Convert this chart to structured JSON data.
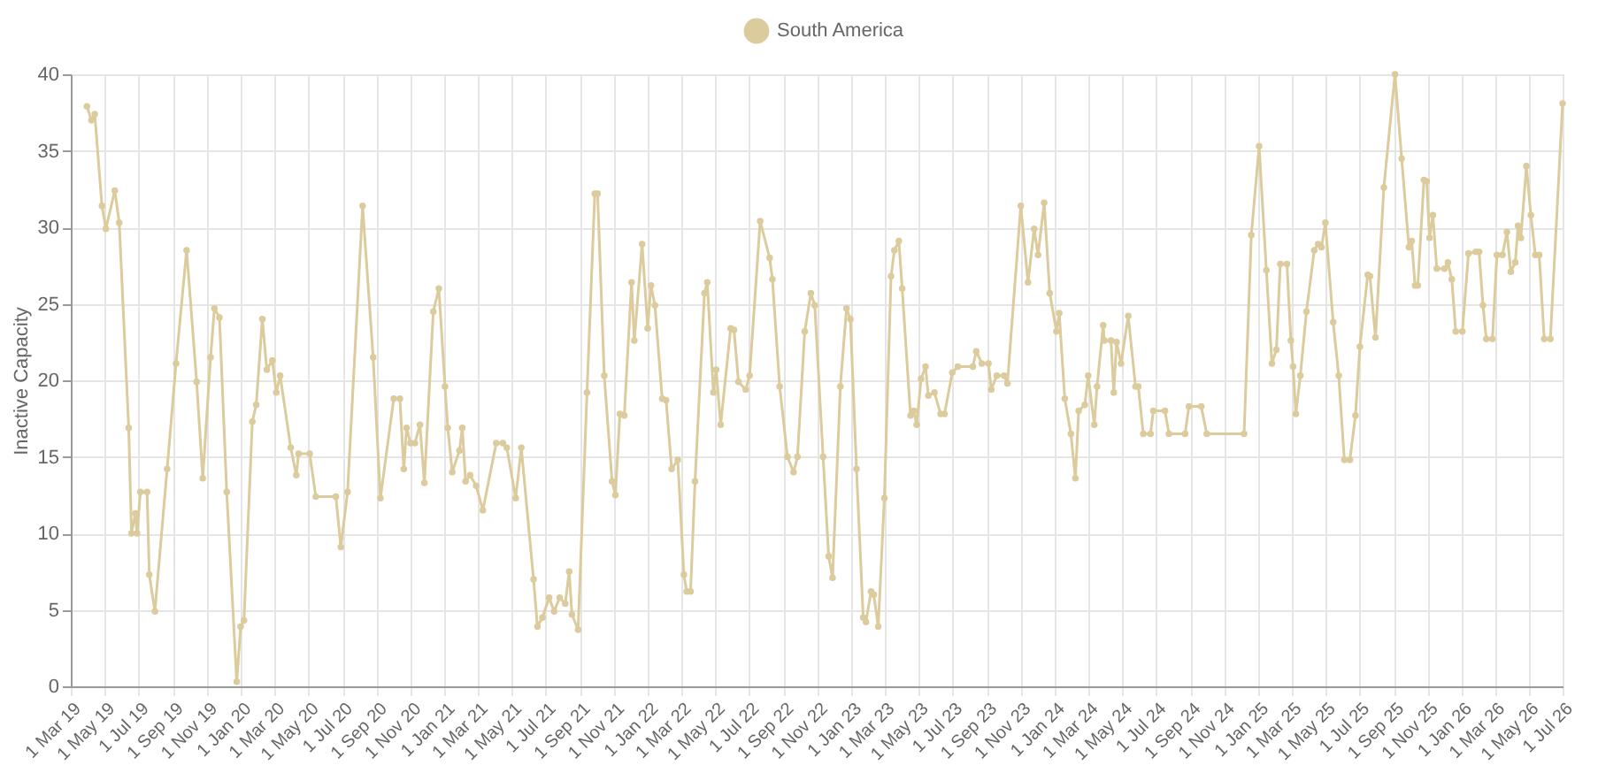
{
  "chart_data": {
    "type": "line",
    "ylabel": "Inactive Capacity",
    "x": [
      "2019-03-30",
      "2019-04-07",
      "2019-04-13",
      "2019-04-26",
      "2019-05-03",
      "2019-05-19",
      "2019-05-27",
      "2019-06-13",
      "2019-06-18",
      "2019-06-25",
      "2019-06-28",
      "2019-07-04",
      "2019-07-16",
      "2019-07-20",
      "2019-07-30",
      "2019-08-21",
      "2019-09-06",
      "2019-09-25",
      "2019-10-13",
      "2019-10-24",
      "2019-11-07",
      "2019-11-14",
      "2019-11-23",
      "2019-12-06",
      "2019-12-24",
      "2019-12-31",
      "2020-01-06",
      "2020-01-21",
      "2020-01-28",
      "2020-02-08",
      "2020-02-16",
      "2020-02-26",
      "2020-03-04",
      "2020-03-11",
      "2020-03-30",
      "2020-04-09",
      "2020-04-13",
      "2020-05-03",
      "2020-05-14",
      "2020-06-19",
      "2020-06-28",
      "2020-07-10",
      "2020-08-06",
      "2020-08-25",
      "2020-09-07",
      "2020-10-01",
      "2020-10-12",
      "2020-10-19",
      "2020-10-24",
      "2020-10-31",
      "2020-11-08",
      "2020-11-17",
      "2020-11-25",
      "2020-12-11",
      "2020-12-21",
      "2021-01-01",
      "2021-01-06",
      "2021-01-14",
      "2021-01-27",
      "2021-02-01",
      "2021-02-07",
      "2021-02-15",
      "2021-02-26",
      "2021-03-10",
      "2021-04-03",
      "2021-04-15",
      "2021-04-22",
      "2021-05-08",
      "2021-05-18",
      "2021-06-09",
      "2021-06-16",
      "2021-06-25",
      "2021-07-07",
      "2021-07-16",
      "2021-07-26",
      "2021-08-05",
      "2021-08-12",
      "2021-08-17",
      "2021-08-28",
      "2021-09-13",
      "2021-09-27",
      "2021-10-02",
      "2021-10-14",
      "2021-10-28",
      "2021-11-03",
      "2021-11-11",
      "2021-11-19",
      "2021-12-02",
      "2021-12-07",
      "2021-12-21",
      "2021-12-31",
      "2022-01-06",
      "2022-01-13",
      "2022-01-26",
      "2022-02-02",
      "2022-02-12",
      "2022-02-23",
      "2022-03-06",
      "2022-03-11",
      "2022-03-18",
      "2022-03-26",
      "2022-04-12",
      "2022-04-17",
      "2022-04-28",
      "2022-05-03",
      "2022-05-11",
      "2022-05-29",
      "2022-06-04",
      "2022-06-12",
      "2022-06-25",
      "2022-07-02",
      "2022-07-21",
      "2022-08-07",
      "2022-08-12",
      "2022-08-25",
      "2022-09-08",
      "2022-09-19",
      "2022-09-26",
      "2022-10-09",
      "2022-10-20",
      "2022-10-27",
      "2022-11-11",
      "2022-11-21",
      "2022-11-28",
      "2022-12-12",
      "2022-12-23",
      "2022-12-30",
      "2023-01-10",
      "2023-01-22",
      "2023-01-27",
      "2023-02-05",
      "2023-02-10",
      "2023-02-18",
      "2023-03-01",
      "2023-03-13",
      "2023-03-19",
      "2023-03-27",
      "2023-04-02",
      "2023-04-17",
      "2023-04-23",
      "2023-04-28",
      "2023-05-06",
      "2023-05-14",
      "2023-05-19",
      "2023-05-30",
      "2023-06-10",
      "2023-06-17",
      "2023-07-01",
      "2023-07-11",
      "2023-08-07",
      "2023-08-13",
      "2023-08-23",
      "2023-09-04",
      "2023-09-09",
      "2023-09-19",
      "2023-10-02",
      "2023-10-08",
      "2023-11-01",
      "2023-11-14",
      "2023-11-25",
      "2023-12-02",
      "2023-12-13",
      "2023-12-23",
      "2024-01-04",
      "2024-01-09",
      "2024-01-19",
      "2024-01-30",
      "2024-02-07",
      "2024-02-13",
      "2024-02-24",
      "2024-03-01",
      "2024-03-12",
      "2024-03-17",
      "2024-03-28",
      "2024-03-30",
      "2024-04-11",
      "2024-04-16",
      "2024-04-21",
      "2024-04-29",
      "2024-05-12",
      "2024-05-25",
      "2024-05-30",
      "2024-06-08",
      "2024-06-21",
      "2024-06-26",
      "2024-07-17",
      "2024-07-24",
      "2024-08-22",
      "2024-08-29",
      "2024-09-20",
      "2024-09-30",
      "2024-12-06",
      "2024-12-19",
      "2025-01-02",
      "2025-01-15",
      "2025-01-25",
      "2025-02-02",
      "2025-02-09",
      "2025-02-21",
      "2025-02-28",
      "2025-03-04",
      "2025-03-09",
      "2025-03-17",
      "2025-03-28",
      "2025-04-11",
      "2025-04-18",
      "2025-04-24",
      "2025-05-01",
      "2025-05-15",
      "2025-05-25",
      "2025-06-04",
      "2025-06-14",
      "2025-06-24",
      "2025-07-02",
      "2025-07-16",
      "2025-07-20",
      "2025-07-30",
      "2025-08-14",
      "2025-09-03",
      "2025-09-15",
      "2025-09-28",
      "2025-10-03",
      "2025-10-09",
      "2025-10-14",
      "2025-10-25",
      "2025-10-30",
      "2025-11-04",
      "2025-11-10",
      "2025-11-17",
      "2025-12-01",
      "2025-12-07",
      "2025-12-14",
      "2025-12-21",
      "2026-01-02",
      "2026-01-13",
      "2026-01-26",
      "2026-02-01",
      "2026-02-08",
      "2026-02-14",
      "2026-02-25",
      "2026-03-05",
      "2026-03-15",
      "2026-03-23",
      "2026-03-30",
      "2026-04-07",
      "2026-04-12",
      "2026-04-17",
      "2026-04-27",
      "2026-05-05",
      "2026-05-13",
      "2026-05-20",
      "2026-05-29",
      "2026-06-09",
      "2026-07-01"
    ],
    "series": [
      {
        "name": "South America",
        "color": "#dccb9c",
        "values": [
          37.9,
          37.0,
          37.4,
          31.4,
          29.9,
          32.4,
          30.3,
          16.9,
          10.0,
          11.3,
          10.0,
          12.7,
          12.7,
          7.3,
          4.9,
          14.2,
          21.1,
          28.5,
          19.9,
          13.6,
          21.5,
          24.7,
          24.1,
          12.7,
          0.3,
          3.9,
          4.3,
          17.3,
          18.4,
          24.0,
          20.7,
          21.3,
          19.2,
          20.3,
          15.6,
          13.8,
          15.2,
          15.2,
          12.4,
          12.4,
          9.1,
          12.7,
          31.4,
          21.5,
          12.3,
          18.8,
          18.8,
          14.2,
          16.9,
          15.9,
          15.9,
          17.1,
          13.3,
          24.5,
          26.0,
          19.6,
          16.9,
          14.0,
          15.4,
          16.9,
          13.4,
          13.8,
          13.1,
          11.5,
          15.9,
          15.9,
          15.6,
          12.3,
          15.6,
          7.0,
          3.9,
          4.5,
          5.8,
          4.9,
          5.8,
          5.4,
          7.5,
          4.7,
          3.7,
          19.2,
          32.2,
          32.2,
          20.3,
          13.4,
          12.5,
          17.8,
          17.7,
          26.4,
          22.6,
          28.9,
          23.4,
          26.2,
          24.9,
          18.8,
          18.7,
          14.2,
          14.8,
          7.3,
          6.2,
          6.2,
          13.4,
          25.7,
          26.4,
          19.2,
          20.7,
          17.1,
          23.4,
          23.3,
          19.9,
          19.4,
          20.3,
          30.4,
          28.0,
          26.6,
          19.6,
          15.0,
          14.0,
          15.0,
          23.2,
          25.7,
          24.9,
          15.0,
          8.5,
          7.1,
          19.6,
          24.7,
          24.0,
          14.2,
          4.5,
          4.2,
          6.2,
          6.0,
          3.9,
          12.3,
          26.8,
          28.5,
          29.1,
          26.0,
          17.7,
          18.0,
          17.1,
          20.1,
          20.9,
          19.0,
          19.2,
          17.8,
          17.8,
          20.5,
          20.9,
          20.9,
          21.9,
          21.1,
          21.1,
          19.4,
          20.3,
          20.3,
          19.8,
          31.4,
          26.4,
          29.9,
          28.2,
          31.6,
          25.7,
          23.2,
          24.4,
          18.8,
          16.5,
          13.6,
          18.0,
          18.4,
          20.3,
          17.1,
          19.6,
          23.6,
          22.6,
          22.6,
          19.2,
          22.5,
          21.1,
          24.2,
          19.6,
          19.6,
          16.5,
          16.5,
          18.0,
          18.0,
          16.5,
          16.5,
          18.3,
          18.3,
          16.5,
          16.5,
          29.5,
          35.3,
          27.2,
          21.1,
          22.0,
          27.6,
          27.6,
          22.6,
          20.9,
          17.8,
          20.3,
          24.5,
          28.5,
          28.9,
          28.7,
          30.3,
          23.8,
          20.3,
          14.8,
          14.8,
          17.7,
          22.2,
          26.9,
          26.8,
          22.8,
          32.6,
          40.0,
          34.5,
          28.7,
          29.1,
          26.2,
          26.2,
          33.1,
          33.0,
          29.3,
          30.8,
          27.3,
          27.3,
          27.7,
          26.6,
          23.2,
          23.2,
          28.3,
          28.4,
          28.4,
          24.9,
          22.7,
          22.7,
          28.2,
          28.2,
          29.7,
          27.1,
          27.7,
          30.1,
          29.3,
          34.0,
          30.8,
          28.2,
          28.2,
          22.7,
          22.7,
          38.1
        ]
      }
    ],
    "xlim": [
      "2019-03-01",
      "2026-07-01"
    ],
    "xticks": [
      {
        "value": "2019-03-01",
        "label": "1 Mar 19"
      },
      {
        "value": "2019-05-01",
        "label": "1 May 19"
      },
      {
        "value": "2019-07-01",
        "label": "1 Jul 19"
      },
      {
        "value": "2019-09-01",
        "label": "1 Sep 19"
      },
      {
        "value": "2019-11-01",
        "label": "1 Nov 19"
      },
      {
        "value": "2020-01-01",
        "label": "1 Jan 20"
      },
      {
        "value": "2020-03-01",
        "label": "1 Mar 20"
      },
      {
        "value": "2020-05-01",
        "label": "1 May 20"
      },
      {
        "value": "2020-07-01",
        "label": "1 Jul 20"
      },
      {
        "value": "2020-09-01",
        "label": "1 Sep 20"
      },
      {
        "value": "2020-11-01",
        "label": "1 Nov 20"
      },
      {
        "value": "2021-01-01",
        "label": "1 Jan 21"
      },
      {
        "value": "2021-03-01",
        "label": "1 Mar 21"
      },
      {
        "value": "2021-05-01",
        "label": "1 May 21"
      },
      {
        "value": "2021-07-01",
        "label": "1 Jul 21"
      },
      {
        "value": "2021-09-01",
        "label": "1 Sep 21"
      },
      {
        "value": "2021-11-01",
        "label": "1 Nov 21"
      },
      {
        "value": "2022-01-01",
        "label": "1 Jan 22"
      },
      {
        "value": "2022-03-01",
        "label": "1 Mar 22"
      },
      {
        "value": "2022-05-01",
        "label": "1 May 22"
      },
      {
        "value": "2022-07-01",
        "label": "1 Jul 22"
      },
      {
        "value": "2022-09-01",
        "label": "1 Sep 22"
      },
      {
        "value": "2022-11-01",
        "label": "1 Nov 22"
      },
      {
        "value": "2023-01-01",
        "label": "1 Jan 23"
      },
      {
        "value": "2023-03-01",
        "label": "1 Mar 23"
      },
      {
        "value": "2023-05-01",
        "label": "1 May 23"
      },
      {
        "value": "2023-07-01",
        "label": "1 Jul 23"
      },
      {
        "value": "2023-09-01",
        "label": "1 Sep 23"
      },
      {
        "value": "2023-11-01",
        "label": "1 Nov 23"
      },
      {
        "value": "2024-01-01",
        "label": "1 Jan 24"
      },
      {
        "value": "2024-03-01",
        "label": "1 Mar 24"
      },
      {
        "value": "2024-05-01",
        "label": "1 May 24"
      },
      {
        "value": "2024-07-01",
        "label": "1 Jul 24"
      },
      {
        "value": "2024-09-01",
        "label": "1 Sep 24"
      },
      {
        "value": "2024-11-01",
        "label": "1 Nov 24"
      },
      {
        "value": "2025-01-01",
        "label": "1 Jan 25"
      },
      {
        "value": "2025-03-01",
        "label": "1 Mar 25"
      },
      {
        "value": "2025-05-01",
        "label": "1 May 25"
      },
      {
        "value": "2025-07-01",
        "label": "1 Jul 25"
      },
      {
        "value": "2025-09-01",
        "label": "1 Sep 25"
      },
      {
        "value": "2025-11-01",
        "label": "1 Nov 25"
      },
      {
        "value": "2026-01-01",
        "label": "1 Jan 26"
      },
      {
        "value": "2026-03-01",
        "label": "1 Mar 26"
      },
      {
        "value": "2026-05-01",
        "label": "1 May 26"
      },
      {
        "value": "2026-07-01",
        "label": "1 Jul 26"
      }
    ],
    "ylim": [
      0,
      40
    ],
    "yticks": [
      0,
      5,
      10,
      15,
      20,
      25,
      30,
      35,
      40
    ],
    "grid": true,
    "legend": "top",
    "marker": "circle",
    "line_style": "solid"
  }
}
